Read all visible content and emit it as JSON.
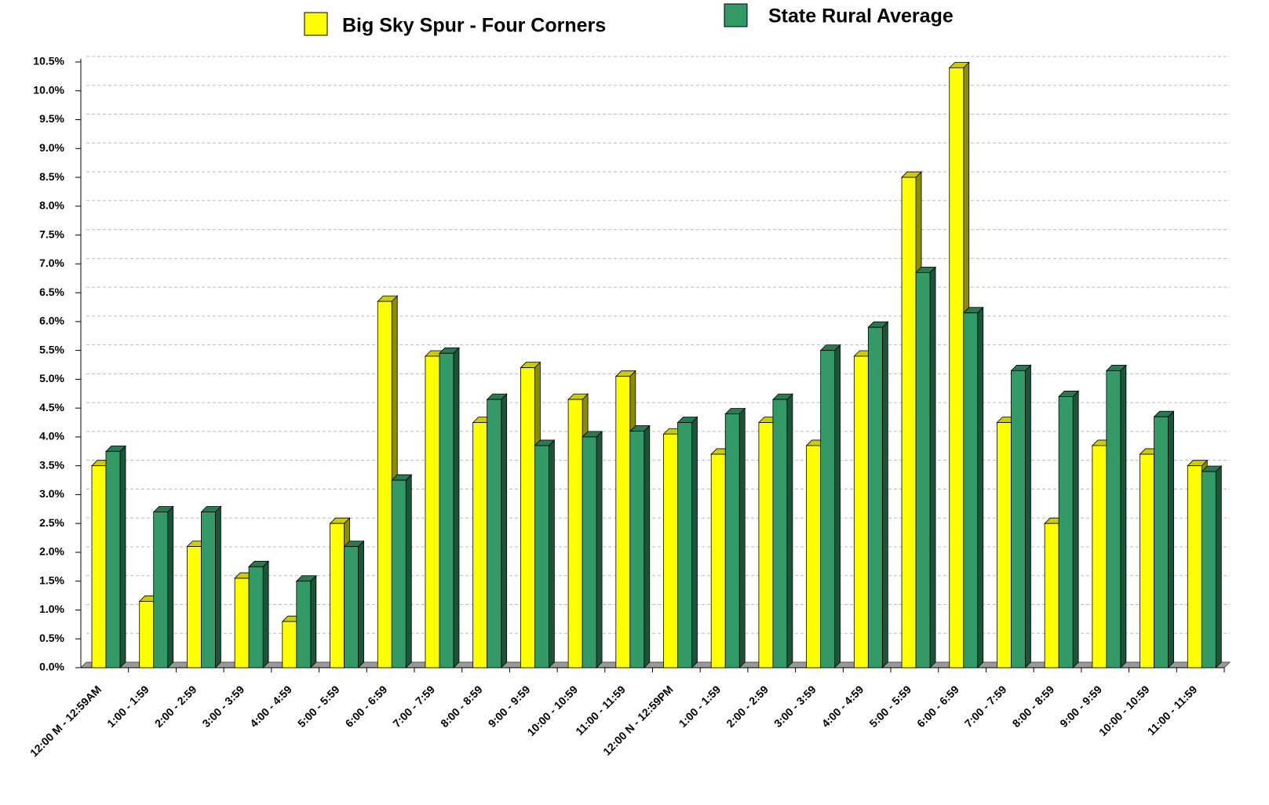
{
  "chart_data": {
    "type": "bar3d",
    "categories": [
      "12:00 M - 12:59AM",
      "1:00 - 1:59",
      "2:00 - 2:59",
      "3:00 - 3:59",
      "4:00 - 4:59",
      "5:00 - 5:59",
      "6:00 - 6:59",
      "7:00 - 7:59",
      "8:00 - 8:59",
      "9:00 - 9:59",
      "10:00 - 10:59",
      "11:00 - 11:59",
      "12:00 N - 12:59PM",
      "1:00 - 1:59",
      "2:00 - 2:59",
      "3:00 - 3:59",
      "4:00 - 4:59",
      "5:00 - 5:59",
      "6:00 - 6:59",
      "7:00 - 7:59",
      "8:00 - 8:59",
      "9:00 - 9:59",
      "10:00 - 10:59",
      "11:00 - 11:59"
    ],
    "series": [
      {
        "name": "Big Sky Spur - Four Corners",
        "color": "#ffff00",
        "values": [
          3.5,
          1.15,
          2.1,
          1.55,
          0.8,
          2.5,
          6.35,
          5.4,
          4.25,
          5.2,
          4.65,
          5.05,
          4.05,
          3.7,
          4.25,
          3.85,
          5.4,
          8.5,
          10.4,
          4.25,
          2.5,
          3.85,
          3.7,
          3.5
        ]
      },
      {
        "name": "State Rural Average",
        "color": "#339966",
        "values": [
          3.75,
          2.7,
          2.7,
          1.75,
          1.5,
          2.1,
          3.25,
          5.45,
          4.65,
          3.85,
          4.0,
          4.1,
          4.25,
          4.4,
          4.65,
          5.5,
          5.9,
          6.85,
          6.15,
          5.15,
          4.7,
          5.15,
          4.35,
          3.4
        ]
      }
    ],
    "ylim": [
      0,
      10.5
    ],
    "yticks": [
      {
        "value": 0,
        "label": "0.0%"
      },
      {
        "value": 0.5,
        "label": "0.5%"
      },
      {
        "value": 1,
        "label": "1.0%"
      },
      {
        "value": 1.5,
        "label": "1.5%"
      },
      {
        "value": 2,
        "label": "2.0%"
      },
      {
        "value": 2.5,
        "label": "2.5%"
      },
      {
        "value": 3,
        "label": "3.0%"
      },
      {
        "value": 3.5,
        "label": "3.5%"
      },
      {
        "value": 4,
        "label": "4.0%"
      },
      {
        "value": 4.5,
        "label": "4.5%"
      },
      {
        "value": 5,
        "label": "5.0%"
      },
      {
        "value": 5.5,
        "label": "5.5%"
      },
      {
        "value": 6,
        "label": "6.0%"
      },
      {
        "value": 6.5,
        "label": "6.5%"
      },
      {
        "value": 7,
        "label": "7.0%"
      },
      {
        "value": 7.5,
        "label": "7.5%"
      },
      {
        "value": 8,
        "label": "8.0%"
      },
      {
        "value": 8.5,
        "label": "8.5%"
      },
      {
        "value": 9,
        "label": "9.0%"
      },
      {
        "value": 9.5,
        "label": "9.5%"
      },
      {
        "value": 10,
        "label": "10.0%"
      },
      {
        "value": 10.5,
        "label": "10.5%"
      }
    ],
    "grid": true
  }
}
